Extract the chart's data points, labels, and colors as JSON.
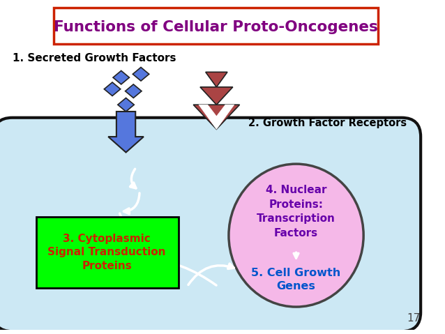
{
  "title": "Functions of Cellular Proto-Oncogenes",
  "title_color": "#800080",
  "title_box_edgecolor": "#cc2200",
  "bg_color": "#ffffff",
  "slide_number": "17",
  "label1": "1. Secreted Growth Factors",
  "label2": "2. Growth Factor Receptors",
  "label3_text": "3. Cytoplasmic\nSignal Transduction\nProteins",
  "label3_color": "#cc2200",
  "label3_bg": "#00ff00",
  "label4_text": "4. Nuclear\nProteins:\nTranscription\nFactors",
  "label4_color": "#6600aa",
  "label5_text": "5. Cell Growth\nGenes",
  "label5_color": "#0055cc",
  "cell_fill": "#cce8f4",
  "cell_edge": "#111111",
  "nucleus_fill": "#f5b8e8",
  "nucleus_edge": "#444444",
  "diamond_fill": "#5577dd",
  "diamond_edge": "#222222",
  "receptor_fill": "#aa4444",
  "receptor_edge": "#222222",
  "blue_arrow_fill": "#5577dd",
  "blue_arrow_edge": "#222222",
  "white_arrow_color": "#ffffff"
}
